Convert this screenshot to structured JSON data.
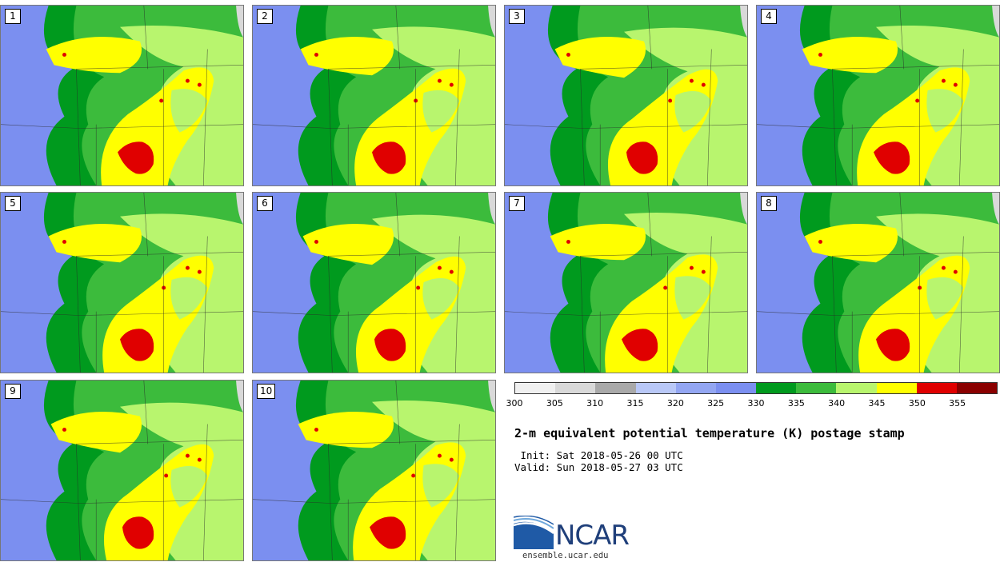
{
  "panels": [
    {
      "label": "1"
    },
    {
      "label": "2"
    },
    {
      "label": "3"
    },
    {
      "label": "4"
    },
    {
      "label": "5"
    },
    {
      "label": "6"
    },
    {
      "label": "7"
    },
    {
      "label": "8"
    },
    {
      "label": "9"
    },
    {
      "label": "10"
    }
  ],
  "colorbar": {
    "colors": [
      "#f0f0f0",
      "#d9d9d9",
      "#a9a9a9",
      "#b9c8f7",
      "#93a6f2",
      "#7b8ff0",
      "#009a1e",
      "#3cbb3c",
      "#b8f56e",
      "#ffff00",
      "#e00000",
      "#8a0000"
    ],
    "ticks": [
      "300",
      "305",
      "310",
      "315",
      "320",
      "325",
      "330",
      "335",
      "340",
      "345",
      "350",
      "355"
    ],
    "units": "K"
  },
  "title": "2-m equivalent potential temperature (K) postage stamp",
  "init_text": " Init: Sat 2018-05-26 00 UTC",
  "valid_text": "Valid: Sun 2018-05-27 03 UTC",
  "logo": {
    "name": "NCAR",
    "url": "ensemble.ucar.edu"
  }
}
